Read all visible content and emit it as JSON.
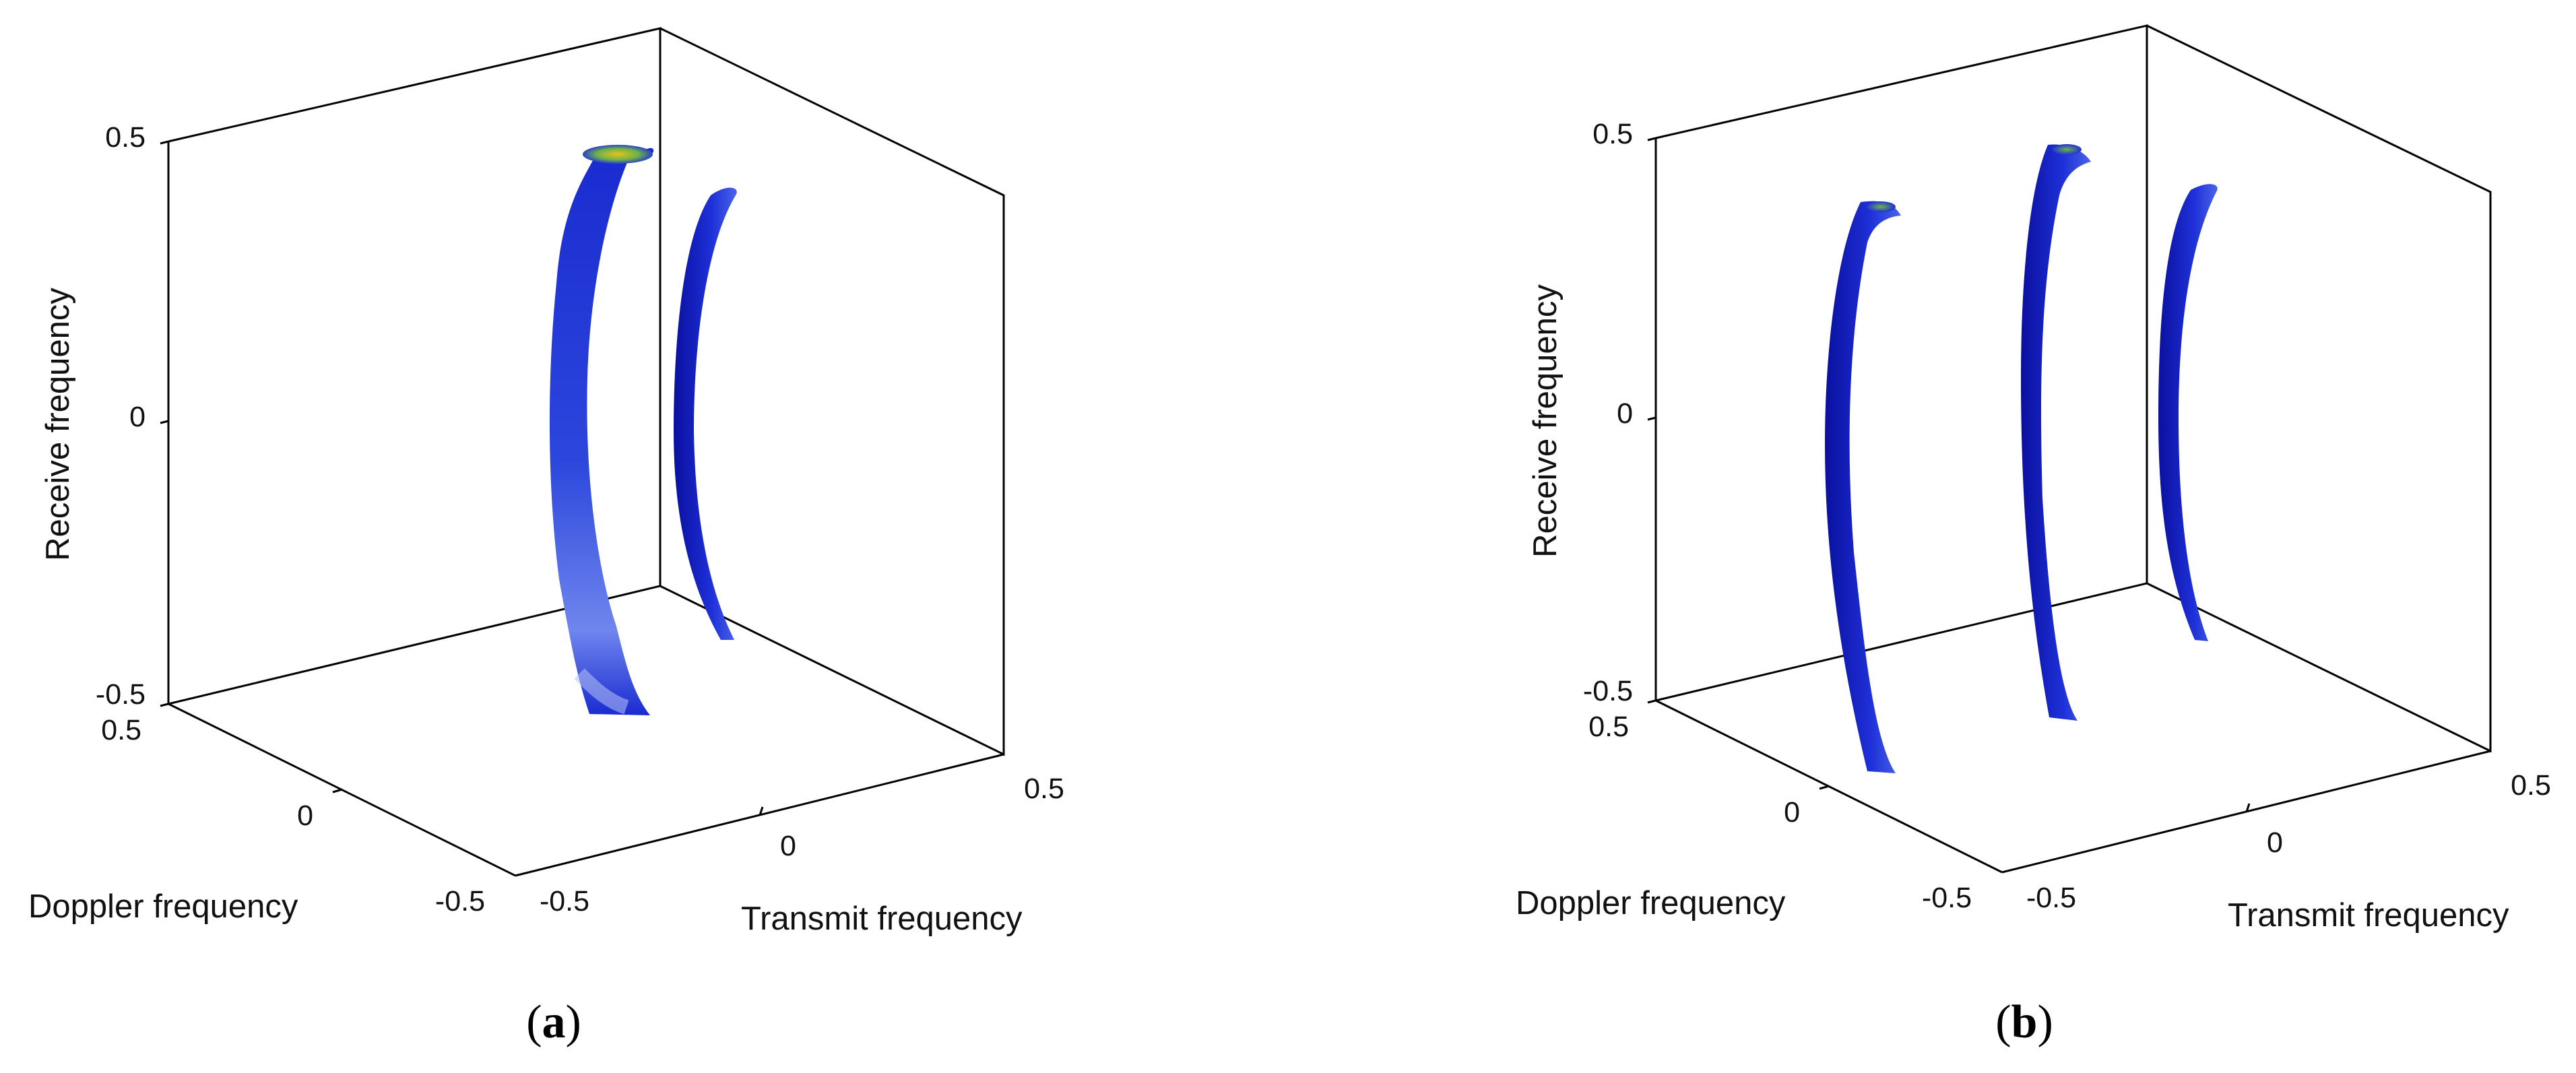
{
  "chart_data": [
    {
      "type": "3d-surface",
      "panel": "(a)",
      "panel_letter": "a",
      "xlabel": "Transmit frequency",
      "ylabel": "Doppler frequency",
      "zlabel": "Receive frequency",
      "xlim": [
        -0.5,
        0.5
      ],
      "ylim": [
        -0.5,
        0.5
      ],
      "zlim": [
        -0.5,
        0.5
      ],
      "x_ticks": [
        "-0.5",
        "0",
        "0.5"
      ],
      "y_ticks": [
        "0.5",
        "0",
        "-0.5"
      ],
      "z_ticks": [
        "0.5",
        "0",
        "-0.5"
      ],
      "colormap": [
        "#0a0f9e",
        "#1e30d8",
        "#6f86ee",
        "#2aa0a0",
        "#e8c21a"
      ],
      "ridges": [
        {
          "name": "",
          "doppler": 0.0,
          "transmit_range": [
            -0.35,
            0.35
          ],
          "thickness": "thick",
          "peak_color": "#e8c21a"
        },
        {
          "name": "",
          "doppler": 0.0,
          "transmit_range": [
            -0.3,
            0.3
          ],
          "thickness": "thin",
          "peak_color": "#1e30d8"
        }
      ]
    },
    {
      "type": "3d-surface",
      "panel": "(b)",
      "panel_letter": "b",
      "xlabel": "Transmit frequency",
      "ylabel": "Doppler frequency",
      "zlabel": "Receive frequency",
      "xlim": [
        -0.5,
        0.5
      ],
      "ylim": [
        -0.5,
        0.5
      ],
      "zlim": [
        -0.5,
        0.5
      ],
      "x_ticks": [
        "-0.5",
        "0",
        "0.5"
      ],
      "y_ticks": [
        "0.5",
        "0",
        "-0.5"
      ],
      "z_ticks": [
        "0.5",
        "0",
        "-0.5"
      ],
      "colormap": [
        "#0a0f9e",
        "#1e30d8",
        "#6f86ee",
        "#2aa0a0",
        "#e8c21a"
      ],
      "ridges": [
        {
          "name": "",
          "doppler": -0.2,
          "transmit_range": [
            -0.35,
            0.35
          ],
          "thickness": "thin",
          "peak_color": "#2aa0a0"
        },
        {
          "name": "",
          "doppler": 0.0,
          "transmit_range": [
            -0.35,
            0.35
          ],
          "thickness": "thin",
          "peak_color": "#2aa0a0"
        },
        {
          "name": "",
          "doppler": 0.2,
          "transmit_range": [
            -0.3,
            0.3
          ],
          "thickness": "thin",
          "peak_color": "#1e30d8"
        }
      ]
    }
  ]
}
